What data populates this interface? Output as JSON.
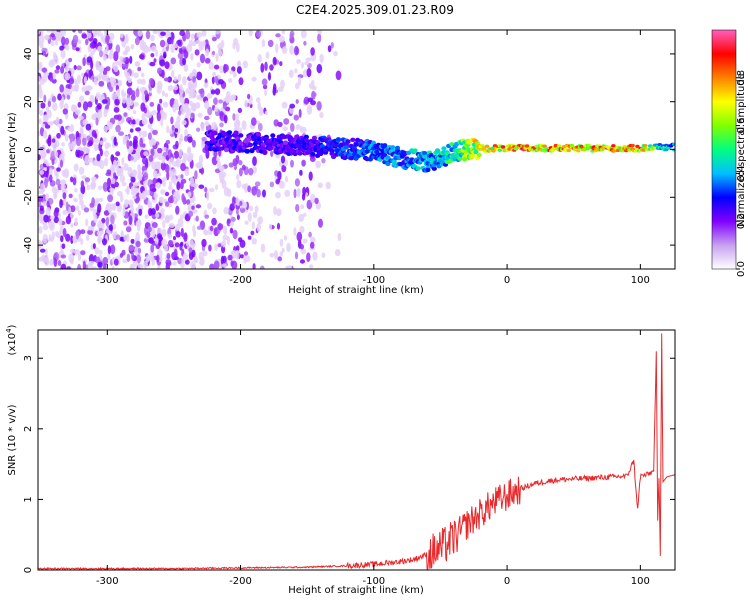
{
  "title": "C2E4.2025.309.01.23.R09",
  "chart_data": [
    {
      "type": "heatmap",
      "title": "",
      "xlabel": "Height of straight line (km)",
      "ylabel": "Frequency (Hz)",
      "xlim": [
        -352,
        126
      ],
      "ylim": [
        -50,
        50
      ],
      "xticks": [
        -300,
        -200,
        -100,
        0,
        100
      ],
      "xtick_labels": [
        "-300",
        "-200",
        "-100",
        "0",
        "100"
      ],
      "yticks": [
        -40,
        -20,
        0,
        20,
        40
      ],
      "ytick_labels": [
        "-40",
        "-20",
        "0",
        "20",
        "40"
      ],
      "colorbar": {
        "label": "Normalized spectral amplitude",
        "range": [
          0,
          1
        ],
        "ticks": [
          0.0,
          0.2,
          0.4,
          0.6,
          0.8
        ],
        "tick_labels": [
          "0.0",
          "0.2",
          "0.4",
          "0.6",
          "0.8"
        ],
        "colors": [
          "#ffffff",
          "#c8a0f0",
          "#8000ff",
          "#0000ff",
          "#00c0ff",
          "#00ff80",
          "#80ff00",
          "#ffff00",
          "#ff8000",
          "#ff0000",
          "#ff60c0"
        ]
      },
      "ridge": {
        "name": "signal track",
        "x": [
          -225,
          -200,
          -170,
          -140,
          -110,
          -90,
          -75,
          -60,
          -50,
          -40,
          -30,
          -20,
          0,
          20,
          50,
          80,
          100,
          110,
          115,
          126
        ],
        "y": [
          4,
          3,
          2,
          1,
          0,
          -2,
          -4,
          -5,
          -4,
          -1,
          0,
          0.5,
          0.5,
          0.5,
          0.5,
          0.5,
          0.5,
          1,
          1,
          1
        ],
        "amplitude": [
          0.3,
          0.3,
          0.3,
          0.35,
          0.4,
          0.45,
          0.45,
          0.5,
          0.5,
          0.6,
          0.7,
          0.85,
          0.95,
          0.95,
          0.95,
          0.95,
          0.9,
          0.7,
          0.6,
          0.5
        ]
      }
    },
    {
      "type": "line",
      "title": "",
      "xlabel": "Height of straight line (km)",
      "ylabel": "SNR (10 * v/v)",
      "y_multiplier": "(x10",
      "y_multiplier_exp": "4",
      "y_multiplier_close": ")",
      "xlim": [
        -352,
        126
      ],
      "ylim": [
        0,
        3.4
      ],
      "xticks": [
        -300,
        -200,
        -100,
        0,
        100
      ],
      "xtick_labels": [
        "-300",
        "-200",
        "-100",
        "0",
        "100"
      ],
      "yticks": [
        0,
        1,
        2,
        3
      ],
      "ytick_labels": [
        "0",
        "1",
        "2",
        "3"
      ],
      "color": "#e8282a",
      "series": [
        {
          "name": "SNR",
          "x": [
            -352,
            -300,
            -250,
            -200,
            -150,
            -120,
            -100,
            -90,
            -80,
            -70,
            -60,
            -50,
            -40,
            -30,
            -20,
            -10,
            0,
            10,
            20,
            30,
            40,
            50,
            60,
            70,
            80,
            90,
            95,
            98,
            100,
            105,
            110,
            112,
            113,
            114,
            115,
            116,
            117,
            120,
            126
          ],
          "y": [
            0.02,
            0.02,
            0.02,
            0.03,
            0.04,
            0.06,
            0.08,
            0.1,
            0.12,
            0.15,
            0.22,
            0.3,
            0.45,
            0.65,
            0.8,
            0.95,
            1.05,
            1.15,
            1.22,
            1.26,
            1.28,
            1.29,
            1.3,
            1.31,
            1.32,
            1.33,
            1.55,
            0.85,
            1.33,
            1.35,
            1.4,
            3.1,
            0.7,
            1.3,
            0.2,
            3.35,
            1.25,
            1.32,
            1.35
          ]
        }
      ]
    }
  ]
}
